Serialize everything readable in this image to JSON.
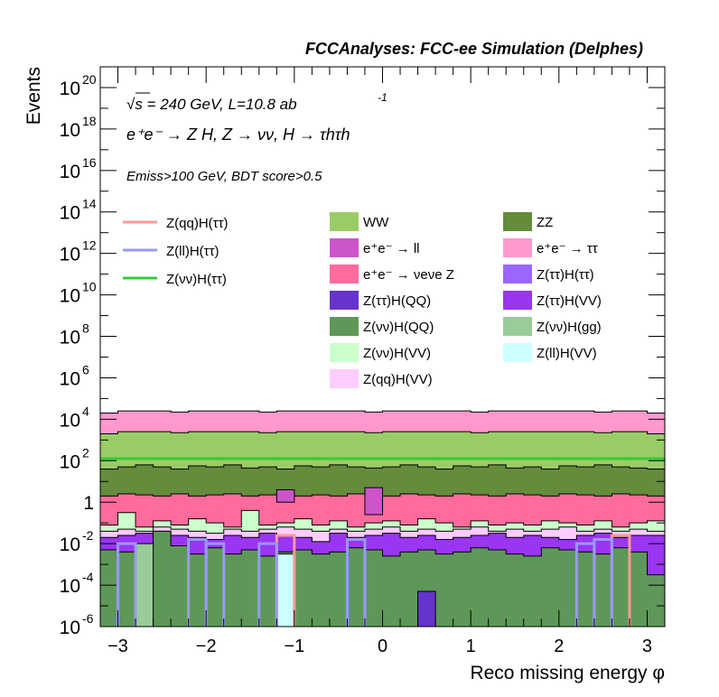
{
  "chart_data": {
    "type": "histogram-stacked-log",
    "title": "FCCAnalyses: FCC-ee Simulation (Delphes)",
    "xlabel": "Reco missing energy φ",
    "ylabel": "Events",
    "xlim": [
      -3.2,
      3.2
    ],
    "ylim_log10": [
      -6,
      21
    ],
    "yscale": "log",
    "x_ticks": [
      -3,
      -2,
      -1,
      0,
      1,
      2,
      3
    ],
    "x_tick_labels": [
      "−3",
      "−2",
      "−1",
      "0",
      "1",
      "2",
      "3"
    ],
    "y_tick_labels": [
      {
        "exp": 20,
        "base": "10",
        "sup": "20"
      },
      {
        "exp": 18,
        "base": "10",
        "sup": "18"
      },
      {
        "exp": 16,
        "base": "10",
        "sup": "16"
      },
      {
        "exp": 14,
        "base": "10",
        "sup": "14"
      },
      {
        "exp": 12,
        "base": "10",
        "sup": "12"
      },
      {
        "exp": 10,
        "base": "10",
        "sup": "10"
      },
      {
        "exp": 8,
        "base": "10",
        "sup": "8"
      },
      {
        "exp": 6,
        "base": "10",
        "sup": "6"
      },
      {
        "exp": 4,
        "base": "10",
        "sup": "4"
      },
      {
        "exp": 2,
        "base": "10",
        "sup": "2"
      },
      {
        "exp": 0,
        "base": "1",
        "sup": ""
      },
      {
        "exp": -2,
        "base": "10",
        "sup": "-2"
      },
      {
        "exp": -4,
        "base": "10",
        "sup": "-4"
      },
      {
        "exp": -6,
        "base": "10",
        "sup": "-6"
      }
    ],
    "annotations": {
      "energy_line": "√s = 240 GeV, L=10.8 ab",
      "energy_sup": "-1",
      "process_line": "e⁺e⁻ → Z H, Z → νν, H → τhτh",
      "cut_line": "Emiss>100 GeV, BDT score>0.5"
    },
    "nbins": 32,
    "stack_top_log10": [
      4.3,
      4.4,
      4.4,
      4.4,
      4.35,
      4.4,
      4.4,
      4.4,
      4.4,
      4.35,
      4.4,
      4.4,
      4.4,
      4.4,
      4.4,
      4.35,
      4.4,
      4.4,
      4.4,
      4.4,
      4.4,
      4.35,
      4.4,
      4.4,
      4.4,
      4.4,
      4.4,
      4.4,
      4.35,
      4.4,
      4.4,
      4.3
    ],
    "stack_layers_log10": [
      {
        "name": "Z(νν)H(QQ)",
        "color": "#5e9858",
        "top": [
          -2.3,
          -2.4,
          -2.2,
          -1.4,
          -2.1,
          -2.5,
          -2.2,
          -2.5,
          -2.3,
          -2.6,
          -2.4,
          -2.3,
          -2.5,
          -2.4,
          -2.2,
          -2.3,
          -2.6,
          -2.4,
          -2.3,
          -2.5,
          -2.4,
          -2.2,
          -2.3,
          -2.5,
          -2.6,
          -2.2,
          -2.3,
          -2.4,
          -2.5,
          -2.2,
          -2.4,
          -3.5
        ]
      },
      {
        "name": "Z(ττ)H(VV)",
        "color": "#9a35f2",
        "top": [
          -1.7,
          -1.6,
          -1.5,
          -1.4,
          -1.6,
          -1.7,
          -1.8,
          -1.6,
          -1.7,
          -1.5,
          -1.6,
          -1.7,
          -1.9,
          -1.5,
          -1.7,
          -1.6,
          -1.5,
          -1.7,
          -1.6,
          -1.8,
          -1.7,
          -1.6,
          -1.5,
          -1.7,
          -1.6,
          -1.7,
          -1.8,
          -1.6,
          -1.5,
          -1.7,
          -1.6,
          -1.6
        ]
      },
      {
        "name": "Z(qq)H(VV)",
        "color": "#ffccff",
        "top": [
          -1.4,
          -1.3,
          -1.4,
          -1.2,
          -1.3,
          -1.4,
          -1.5,
          -1.3,
          -1.4,
          -1.3,
          -1.2,
          -1.3,
          -1.4,
          -1.3,
          -1.4,
          -1.3,
          -1.2,
          -1.4,
          -1.3,
          -1.4,
          -1.3,
          -1.2,
          -1.4,
          -1.3,
          -1.4,
          -1.3,
          -1.2,
          -1.4,
          -1.3,
          -1.4,
          -1.3,
          -1.4
        ]
      },
      {
        "name": "Z(νν)H(VV)",
        "color": "#ccffcc",
        "top": [
          -1.1,
          -0.5,
          -1.2,
          -0.9,
          -1.1,
          -0.8,
          -1.0,
          -1.2,
          -0.4,
          -1.1,
          -1.0,
          -0.8,
          -1.1,
          -0.9,
          -1.2,
          -1.0,
          -0.9,
          -1.1,
          -0.8,
          -1.0,
          -1.2,
          -0.9,
          -1.1,
          -1.0,
          -1.1,
          -0.9,
          -1.0,
          -1.1,
          -0.9,
          -1.2,
          -1.0,
          -0.9
        ]
      },
      {
        "name": "e⁺e⁻ → νeνe Z",
        "color": "#ff6b9c",
        "top": [
          0.3,
          0.4,
          0.35,
          0.3,
          0.4,
          0.3,
          0.35,
          0.4,
          0.3,
          0.35,
          0.4,
          0.3,
          0.35,
          0.3,
          0.4,
          0.35,
          0.3,
          0.4,
          0.35,
          0.3,
          0.4,
          0.35,
          0.3,
          0.4,
          0.35,
          0.3,
          0.4,
          0.35,
          0.3,
          0.4,
          0.35,
          0.3
        ]
      },
      {
        "name": "ZZ",
        "color": "#648c3c",
        "top": [
          1.6,
          1.7,
          1.8,
          1.7,
          1.6,
          1.75,
          1.7,
          1.8,
          1.65,
          1.7,
          1.6,
          1.75,
          1.7,
          1.8,
          1.7,
          1.65,
          1.7,
          1.8,
          1.7,
          1.6,
          1.75,
          1.7,
          1.8,
          1.65,
          1.7,
          1.6,
          1.75,
          1.7,
          1.8,
          1.7,
          1.65,
          1.6
        ]
      },
      {
        "name": "WW",
        "color": "#99cc66",
        "top": [
          3.3,
          3.4,
          3.4,
          3.4,
          3.35,
          3.4,
          3.4,
          3.4,
          3.4,
          3.35,
          3.4,
          3.4,
          3.4,
          3.4,
          3.4,
          3.35,
          3.4,
          3.4,
          3.4,
          3.4,
          3.4,
          3.35,
          3.4,
          3.4,
          3.4,
          3.4,
          3.4,
          3.4,
          3.35,
          3.4,
          3.4,
          3.3
        ]
      },
      {
        "name": "e⁺e⁻ → ττ",
        "color": "#ff99cc",
        "top": "stack_top"
      }
    ],
    "spike_bars_log10": [
      {
        "name": "e⁺e⁻ → ll",
        "color": "#cc55cc",
        "bin": 10,
        "bottom": 0.0,
        "top": 0.6
      },
      {
        "name": "e⁺e⁻ → ll",
        "color": "#cc55cc",
        "bin": 15,
        "bottom": -0.6,
        "top": 0.7
      },
      {
        "name": "Z(ll)H(VV)",
        "color": "#ccffff",
        "bin": 10,
        "bottom": -6,
        "top": -2.5
      },
      {
        "name": "Z(νν)H(gg)",
        "color": "#99cc99",
        "bin": 2,
        "bottom": -6,
        "top": -2.0
      },
      {
        "name": "Z(ττ)H(QQ)",
        "color": "#6633cc",
        "bin": 18,
        "bottom": -6,
        "top": -4.3
      }
    ],
    "series": [
      {
        "name": "Z(qq)H(ττ)",
        "color": "#ff9999",
        "line": [
          {
            "bin": 10,
            "top": -1.6
          },
          {
            "bin": 29,
            "top": -1.6
          }
        ]
      },
      {
        "name": "Z(ll)H(ττ)",
        "color": "#9999ff",
        "line": [
          {
            "bin": 1,
            "top": -2.0
          },
          {
            "bin": 5,
            "top": -1.8
          },
          {
            "bin": 6,
            "top": -2.0
          },
          {
            "bin": 9,
            "top": -2.0
          },
          {
            "bin": 14,
            "top": -1.8
          },
          {
            "bin": 27,
            "top": -2.0
          },
          {
            "bin": 28,
            "top": -1.8
          }
        ]
      },
      {
        "name": "Z(νν)H(ττ)",
        "color": "#33cc33",
        "flat_log10": 2.1
      }
    ],
    "legend_left": [
      "Z(qq)H(ττ)",
      "Z(ll)H(ττ)",
      "Z(νν)H(ττ)"
    ],
    "legend_right": [
      {
        "name": "WW",
        "color": "#99cc66"
      },
      {
        "name": "ZZ",
        "color": "#648c3c"
      },
      {
        "name": "e⁺e⁻ → ll",
        "color": "#cc55cc"
      },
      {
        "name": "e⁺e⁻ → ττ",
        "color": "#ff99cc"
      },
      {
        "name": "e⁺e⁻ → νeνe Z",
        "color": "#ff6b9c"
      },
      {
        "name": "Z(ττ)H(ττ)",
        "color": "#9966ff"
      },
      {
        "name": "Z(ττ)H(QQ)",
        "color": "#6633cc"
      },
      {
        "name": "Z(ττ)H(VV)",
        "color": "#9a35f2"
      },
      {
        "name": "Z(νν)H(QQ)",
        "color": "#5e9858"
      },
      {
        "name": "Z(νν)H(gg)",
        "color": "#99cc99"
      },
      {
        "name": "Z(νν)H(VV)",
        "color": "#ccffcc"
      },
      {
        "name": "Z(ll)H(VV)",
        "color": "#ccffff"
      },
      {
        "name": "Z(qq)H(VV)",
        "color": "#ffccff"
      }
    ]
  }
}
